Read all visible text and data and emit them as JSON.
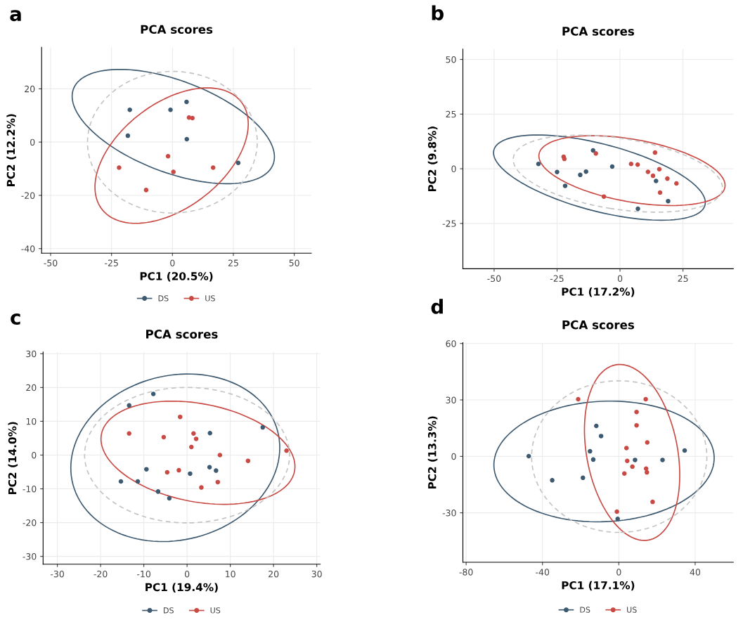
{
  "chart_data": [
    {
      "type": "scatter",
      "title": "PCA scores",
      "xlabel": "PC1 (20.5%)",
      "ylabel": "PC2 (12.2%)",
      "annotations": [
        "a"
      ],
      "xlim": [
        -53.7,
        57
      ],
      "ylim": [
        -41.7,
        35.6
      ],
      "xticks": [
        -50,
        -25,
        0,
        25,
        50
      ],
      "yticks": [
        -40,
        -20,
        0,
        20
      ],
      "grid": true,
      "legend": "bottom",
      "marker": "circle",
      "series": [
        {
          "name": "DS",
          "color": "#3e5a70",
          "x": [
            -17.5,
            -18.3,
            -0.8,
            5.8,
            5.9,
            27.0
          ],
          "values": [
            12.1,
            2.4,
            12.1,
            15.1,
            1.1,
            -7.8
          ]
        },
        {
          "name": "US",
          "color": "#c94a44",
          "x": [
            6.8,
            8.2,
            -1.8,
            0.4,
            -21.9,
            -10.8,
            16.7
          ],
          "values": [
            9.2,
            9.0,
            -5.3,
            -11.2,
            -9.6,
            -18.0,
            -9.6
          ]
        }
      ]
    },
    {
      "type": "scatter",
      "title": "PCA scores",
      "xlabel": "PC1 (17.2%)",
      "ylabel": "PC2 (9.8%)",
      "annotations": [
        "b"
      ],
      "xlim": [
        -62.4,
        45
      ],
      "ylim": [
        -45.7,
        54.7
      ],
      "xticks": [
        -50,
        -25,
        0,
        25
      ],
      "yticks": [
        -25,
        0,
        25,
        50
      ],
      "grid": true,
      "marker": "circle",
      "series": [
        {
          "color": "#3e5a70",
          "x": [
            -32.4,
            -25.0,
            -21.8,
            -15.8,
            -13.5,
            -10.7,
            -3.1,
            14.3,
            19.1,
            7.1
          ],
          "values": [
            2.2,
            -1.5,
            -7.8,
            -2.8,
            -1.3,
            8.4,
            1.0,
            -5.6,
            -14.8,
            -18.3
          ]
        },
        {
          "color": "#c94a44",
          "x": [
            -22.4,
            -22.1,
            -9.6,
            -6.4,
            4.4,
            7.0,
            11.1,
            13.1,
            13.9,
            15.6,
            18.8,
            22.4,
            15.9
          ],
          "values": [
            5.5,
            4.5,
            7.0,
            -12.7,
            2.2,
            1.9,
            -1.4,
            -3.2,
            7.4,
            -0.2,
            -4.5,
            -6.7,
            -10.9
          ]
        }
      ]
    },
    {
      "type": "scatter",
      "title": "PCA scores",
      "xlabel": "PC1 (19.4%)",
      "ylabel": "PC2 (14.0%)",
      "annotations": [
        "c"
      ],
      "xlim": [
        -33.3,
        30.8
      ],
      "ylim": [
        -32.3,
        30.5
      ],
      "xticks": [
        -30,
        -20,
        -10,
        0,
        10,
        20,
        30
      ],
      "yticks": [
        -30,
        -20,
        -10,
        0,
        10,
        20,
        30
      ],
      "grid": true,
      "legend": "bottom",
      "marker": "circle",
      "series": [
        {
          "name": "DS",
          "color": "#3e5a70",
          "x": [
            -13.4,
            -7.8,
            -15.3,
            -11.4,
            -9.4,
            -6.7,
            -4.1,
            0.7,
            5.3,
            5.2,
            6.7,
            17.5
          ],
          "values": [
            14.7,
            18.1,
            -7.8,
            -7.8,
            -4.2,
            -10.8,
            -12.8,
            -5.5,
            6.5,
            -3.6,
            -4.6,
            8.2
          ]
        },
        {
          "name": "US",
          "color": "#c94a44",
          "x": [
            -13.4,
            -5.4,
            -1.6,
            1.5,
            2.1,
            1.0,
            7.6,
            -4.6,
            -1.9,
            3.3,
            7.1,
            14.1,
            23.0
          ],
          "values": [
            6.4,
            5.3,
            11.3,
            6.4,
            4.8,
            2.4,
            0.0,
            -5.1,
            -4.5,
            -9.6,
            -8.0,
            -1.7,
            1.3
          ]
        }
      ]
    },
    {
      "type": "scatter",
      "title": "PCA scores",
      "xlabel": "PC1 (17.1%)",
      "ylabel": "PC2 (13.3%)",
      "annotations": [
        "d"
      ],
      "xlim": [
        -81.7,
        60
      ],
      "ylim": [
        -56.3,
        60.4
      ],
      "xticks": [
        -80,
        -40,
        0,
        40
      ],
      "yticks": [
        -30,
        0,
        30,
        60
      ],
      "grid": true,
      "legend": "bottom",
      "marker": "circle",
      "series": [
        {
          "name": "DS",
          "color": "#3e5a70",
          "x": [
            -47.2,
            -34.9,
            -11.8,
            -9.3,
            -15.1,
            -13.4,
            -18.8,
            8.5,
            22.9,
            -0.6,
            34.5
          ],
          "values": [
            0.1,
            -12.7,
            16.2,
            10.8,
            2.7,
            -1.7,
            -11.4,
            -1.9,
            -1.9,
            -33.2,
            3.1
          ]
        },
        {
          "name": "US",
          "color": "#c94a44",
          "x": [
            -21.3,
            14.1,
            9.3,
            9.3,
            14.9,
            4.0,
            4.4,
            7.1,
            14.3,
            14.7,
            2.9,
            17.7,
            -1.0
          ],
          "values": [
            30.4,
            30.4,
            23.6,
            16.5,
            7.4,
            4.4,
            -2.4,
            -5.5,
            -6.5,
            -8.5,
            -9.1,
            -24.2,
            -29.4
          ]
        }
      ]
    }
  ]
}
